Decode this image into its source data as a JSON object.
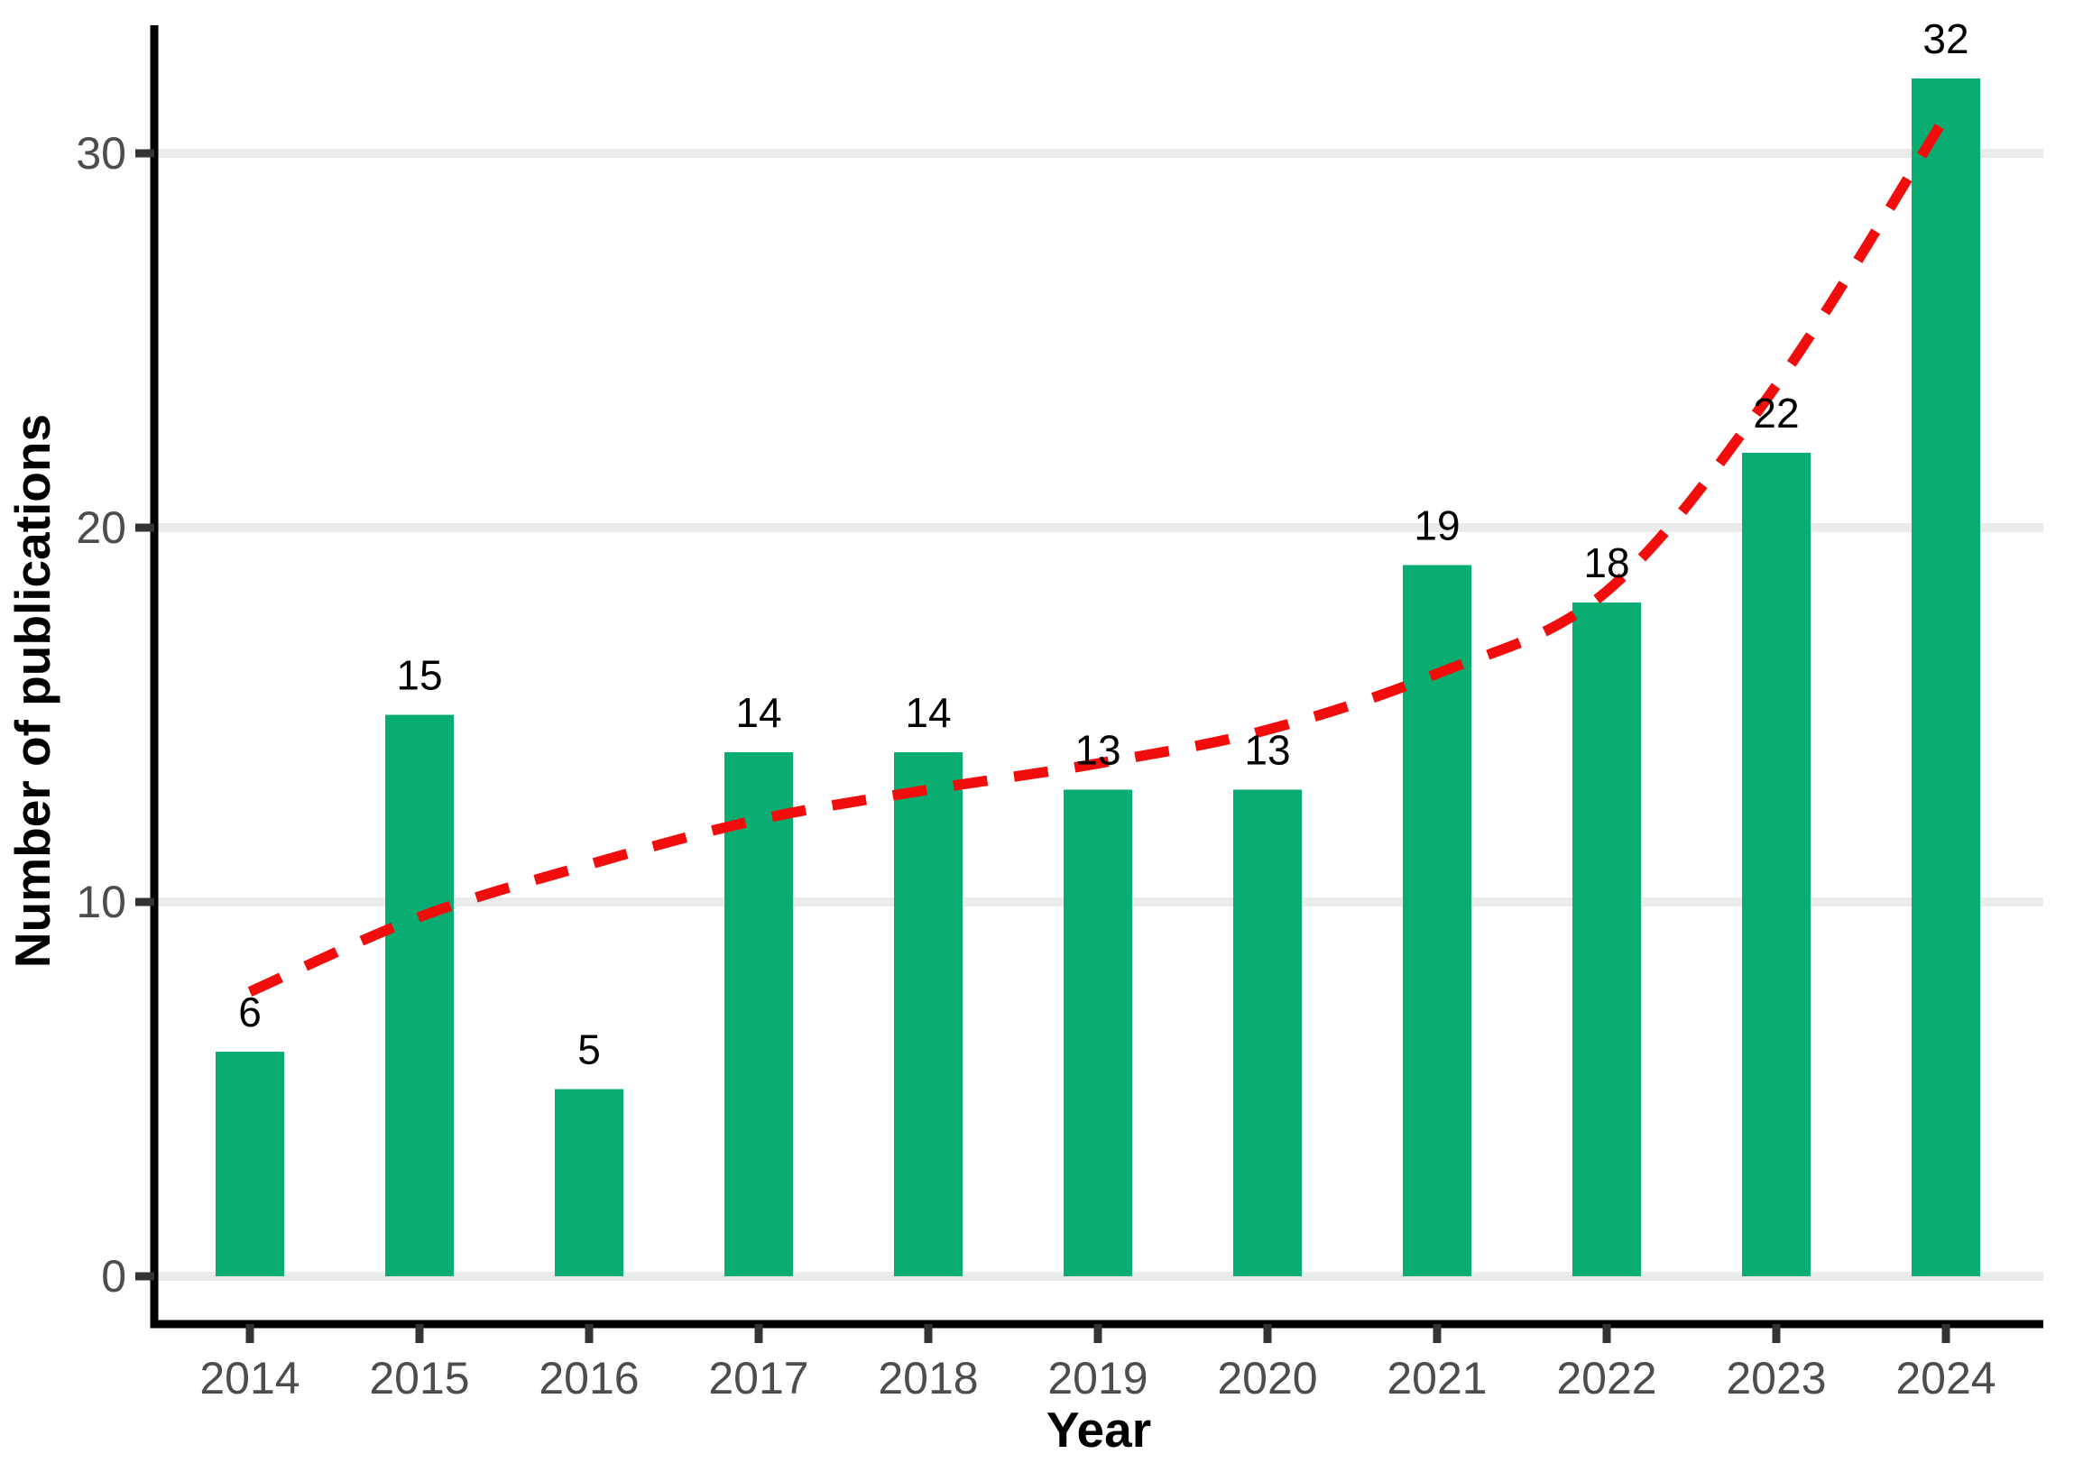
{
  "chart_data": {
    "type": "bar",
    "title": "",
    "xlabel": "Year",
    "ylabel": "Number of publications",
    "categories": [
      "2014",
      "2015",
      "2016",
      "2017",
      "2018",
      "2019",
      "2020",
      "2021",
      "2022",
      "2023",
      "2024"
    ],
    "series": [
      {
        "name": "publications-per-year",
        "values": [
          6,
          15,
          5,
          14,
          14,
          13,
          13,
          19,
          18,
          22,
          32
        ]
      }
    ],
    "bar_value_labels": [
      "6",
      "15",
      "5",
      "14",
      "14",
      "13",
      "13",
      "19",
      "18",
      "22",
      "32"
    ],
    "trend": {
      "name": "smoothed-trend",
      "style": "dashed",
      "values": [
        7.6,
        9.6,
        11.0,
        12.2,
        13.0,
        13.7,
        14.6,
        16.1,
        18.3,
        23.8,
        31.0
      ]
    },
    "yticks": [
      0,
      10,
      20,
      30
    ],
    "ylim": [
      0,
      33.5
    ],
    "grid": "horizontal-major-only",
    "legend": "none",
    "colors": {
      "bar": "#09ac71",
      "trend": "#f20d0d",
      "gridline": "#ebebeb",
      "axis_line": "#000000",
      "tick_mark": "#333333",
      "tick_text": "#4d4d4d",
      "label_text": "#000000",
      "background": "#ffffff"
    }
  }
}
